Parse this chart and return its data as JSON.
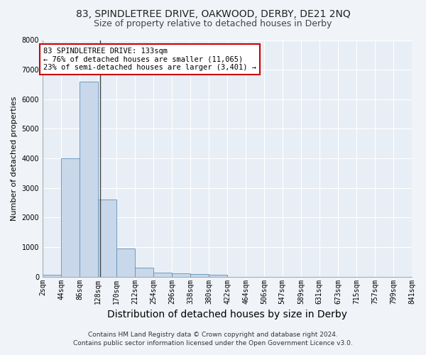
{
  "title": "83, SPINDLETREE DRIVE, OAKWOOD, DERBY, DE21 2NQ",
  "subtitle": "Size of property relative to detached houses in Derby",
  "xlabel": "Distribution of detached houses by size in Derby",
  "ylabel": "Number of detached properties",
  "footnote1": "Contains HM Land Registry data © Crown copyright and database right 2024.",
  "footnote2": "Contains public sector information licensed under the Open Government Licence v3.0.",
  "bin_edges": [
    2,
    44,
    86,
    128,
    170,
    212,
    254,
    296,
    338,
    380,
    422,
    464,
    506,
    547,
    589,
    631,
    673,
    715,
    757,
    799,
    841
  ],
  "bar_heights": [
    70,
    4000,
    6600,
    2600,
    950,
    310,
    130,
    110,
    90,
    55,
    0,
    0,
    0,
    0,
    0,
    0,
    0,
    0,
    0,
    0
  ],
  "bar_color": "#c8d8ea",
  "bar_edge_color": "#6090b8",
  "property_size": 133,
  "property_label": "83 SPINDLETREE DRIVE: 133sqm",
  "annotation_line1": "← 76% of detached houses are smaller (11,065)",
  "annotation_line2": "23% of semi-detached houses are larger (3,401) →",
  "annotation_box_facecolor": "white",
  "annotation_box_edgecolor": "#cc0000",
  "property_line_color": "#444444",
  "ylim": [
    0,
    8000
  ],
  "yticks": [
    0,
    1000,
    2000,
    3000,
    4000,
    5000,
    6000,
    7000,
    8000
  ],
  "bg_color": "#f0f4f8",
  "plot_bg_color": "#e8eef5",
  "grid_color": "#ffffff",
  "title_fontsize": 10,
  "subtitle_fontsize": 9,
  "xlabel_fontsize": 10,
  "ylabel_fontsize": 8,
  "tick_fontsize": 7,
  "annotation_fontsize": 7.5,
  "footnote_fontsize": 6.5
}
